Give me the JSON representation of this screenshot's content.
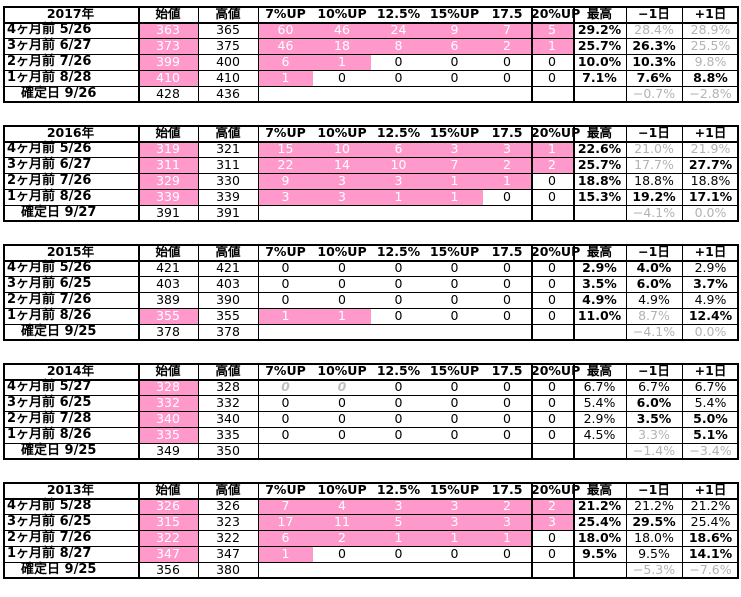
{
  "columns": [
    "始値",
    "高値",
    "7%UP",
    "10%UP",
    "12.5%",
    "15%UP",
    "17.5",
    "20%UP",
    "最高",
    "−1日",
    "+1日"
  ],
  "colors": {
    "highlight": "#ff99cc",
    "muted": "#b3b3b3",
    "border": "#000000"
  },
  "blocks": [
    {
      "year": "2017年",
      "rows": [
        {
          "label": "4ヶ月前  5/26",
          "cells": [
            {
              "v": "363",
              "s": "pk"
            },
            {
              "v": "365"
            },
            {
              "v": "60",
              "s": "pk"
            },
            {
              "v": "46",
              "s": "pk"
            },
            {
              "v": "24",
              "s": "pk"
            },
            {
              "v": "9",
              "s": "pk"
            },
            {
              "v": "7",
              "s": "pk"
            },
            {
              "v": "5",
              "s": "pk"
            },
            {
              "v": "29.2%",
              "s": "b"
            },
            {
              "v": "28.4%",
              "s": "gy"
            },
            {
              "v": "28.9%",
              "s": "gy"
            }
          ]
        },
        {
          "label": "3ヶ月前  6/27",
          "cells": [
            {
              "v": "373",
              "s": "pk"
            },
            {
              "v": "375"
            },
            {
              "v": "46",
              "s": "pk"
            },
            {
              "v": "18",
              "s": "pk"
            },
            {
              "v": "8",
              "s": "pk"
            },
            {
              "v": "6",
              "s": "pk"
            },
            {
              "v": "2",
              "s": "pk"
            },
            {
              "v": "1",
              "s": "pk"
            },
            {
              "v": "25.7%",
              "s": "b"
            },
            {
              "v": "26.3%",
              "s": "b"
            },
            {
              "v": "25.5%",
              "s": "gy"
            }
          ]
        },
        {
          "label": "2ヶ月前  7/26",
          "cells": [
            {
              "v": "399",
              "s": "pk"
            },
            {
              "v": "400"
            },
            {
              "v": "6",
              "s": "pk"
            },
            {
              "v": "1",
              "s": "pk"
            },
            {
              "v": "0"
            },
            {
              "v": "0"
            },
            {
              "v": "0"
            },
            {
              "v": "0"
            },
            {
              "v": "10.0%",
              "s": "b"
            },
            {
              "v": "10.3%",
              "s": "b"
            },
            {
              "v": "9.8%",
              "s": "gy"
            }
          ]
        },
        {
          "label": "1ヶ月前  8/28",
          "cells": [
            {
              "v": "410",
              "s": "pk"
            },
            {
              "v": "410"
            },
            {
              "v": "1",
              "s": "pk"
            },
            {
              "v": "0"
            },
            {
              "v": "0"
            },
            {
              "v": "0"
            },
            {
              "v": "0"
            },
            {
              "v": "0"
            },
            {
              "v": "7.1%",
              "s": "b"
            },
            {
              "v": "7.6%",
              "s": "b"
            },
            {
              "v": "8.8%",
              "s": "b"
            }
          ]
        }
      ],
      "confirm": {
        "label": "確定日  9/26",
        "open": "428",
        "high": "436",
        "m1": "−0.7%",
        "p1": "−2.8%"
      }
    },
    {
      "year": "2016年",
      "rows": [
        {
          "label": "4ヶ月前  5/26",
          "cells": [
            {
              "v": "319",
              "s": "pk"
            },
            {
              "v": "321"
            },
            {
              "v": "15",
              "s": "pk"
            },
            {
              "v": "10",
              "s": "pk"
            },
            {
              "v": "6",
              "s": "pk"
            },
            {
              "v": "3",
              "s": "pk"
            },
            {
              "v": "3",
              "s": "pk"
            },
            {
              "v": "1",
              "s": "pk"
            },
            {
              "v": "22.6%",
              "s": "b"
            },
            {
              "v": "21.0%",
              "s": "gy"
            },
            {
              "v": "21.9%",
              "s": "gy"
            }
          ]
        },
        {
          "label": "3ヶ月前  6/27",
          "cells": [
            {
              "v": "311",
              "s": "pk"
            },
            {
              "v": "311"
            },
            {
              "v": "22",
              "s": "pk"
            },
            {
              "v": "14",
              "s": "pk"
            },
            {
              "v": "10",
              "s": "pk"
            },
            {
              "v": "7",
              "s": "pk"
            },
            {
              "v": "2",
              "s": "pk"
            },
            {
              "v": "2",
              "s": "pk"
            },
            {
              "v": "25.7%",
              "s": "b"
            },
            {
              "v": "17.7%",
              "s": "gy"
            },
            {
              "v": "27.7%",
              "s": "b"
            }
          ]
        },
        {
          "label": "2ヶ月前  7/26",
          "cells": [
            {
              "v": "329",
              "s": "pk"
            },
            {
              "v": "330"
            },
            {
              "v": "9",
              "s": "pk"
            },
            {
              "v": "3",
              "s": "pk"
            },
            {
              "v": "3",
              "s": "pk"
            },
            {
              "v": "1",
              "s": "pk"
            },
            {
              "v": "1",
              "s": "pk"
            },
            {
              "v": "0"
            },
            {
              "v": "18.8%",
              "s": "b"
            },
            {
              "v": "18.8%"
            },
            {
              "v": "18.8%"
            }
          ]
        },
        {
          "label": "1ヶ月前  8/26",
          "cells": [
            {
              "v": "339",
              "s": "pk"
            },
            {
              "v": "339"
            },
            {
              "v": "3",
              "s": "pk"
            },
            {
              "v": "3",
              "s": "pk"
            },
            {
              "v": "1",
              "s": "pk"
            },
            {
              "v": "1",
              "s": "pk"
            },
            {
              "v": "0"
            },
            {
              "v": "0"
            },
            {
              "v": "15.3%",
              "s": "b"
            },
            {
              "v": "19.2%",
              "s": "b"
            },
            {
              "v": "17.1%",
              "s": "b"
            }
          ]
        }
      ],
      "confirm": {
        "label": "確定日  9/27",
        "open": "391",
        "high": "391",
        "m1": "−4.1%",
        "p1": "0.0%"
      }
    },
    {
      "year": "2015年",
      "rows": [
        {
          "label": "4ヶ月前  5/26",
          "cells": [
            {
              "v": "421"
            },
            {
              "v": "421"
            },
            {
              "v": "0"
            },
            {
              "v": "0"
            },
            {
              "v": "0"
            },
            {
              "v": "0"
            },
            {
              "v": "0"
            },
            {
              "v": "0"
            },
            {
              "v": "2.9%",
              "s": "b"
            },
            {
              "v": "4.0%",
              "s": "b"
            },
            {
              "v": "2.9%"
            }
          ]
        },
        {
          "label": "3ヶ月前  6/25",
          "cells": [
            {
              "v": "403"
            },
            {
              "v": "403"
            },
            {
              "v": "0"
            },
            {
              "v": "0"
            },
            {
              "v": "0"
            },
            {
              "v": "0"
            },
            {
              "v": "0"
            },
            {
              "v": "0"
            },
            {
              "v": "3.5%",
              "s": "b"
            },
            {
              "v": "6.0%",
              "s": "b"
            },
            {
              "v": "3.7%",
              "s": "b"
            }
          ]
        },
        {
          "label": "2ヶ月前  7/26",
          "cells": [
            {
              "v": "389"
            },
            {
              "v": "390"
            },
            {
              "v": "0"
            },
            {
              "v": "0"
            },
            {
              "v": "0"
            },
            {
              "v": "0"
            },
            {
              "v": "0"
            },
            {
              "v": "0"
            },
            {
              "v": "4.9%",
              "s": "b"
            },
            {
              "v": "4.9%"
            },
            {
              "v": "4.9%"
            }
          ]
        },
        {
          "label": "1ヶ月前  8/26",
          "cells": [
            {
              "v": "355",
              "s": "pk"
            },
            {
              "v": "355"
            },
            {
              "v": "1",
              "s": "pk"
            },
            {
              "v": "1",
              "s": "pk"
            },
            {
              "v": "0"
            },
            {
              "v": "0"
            },
            {
              "v": "0"
            },
            {
              "v": "0"
            },
            {
              "v": "11.0%",
              "s": "b"
            },
            {
              "v": "8.7%",
              "s": "gy"
            },
            {
              "v": "12.4%",
              "s": "b"
            }
          ]
        }
      ],
      "confirm": {
        "label": "確定日  9/25",
        "open": "378",
        "high": "378",
        "m1": "−4.1%",
        "p1": "0.0%"
      }
    },
    {
      "year": "2014年",
      "rows": [
        {
          "label": "4ヶ月前  5/27",
          "cells": [
            {
              "v": "328",
              "s": "pk"
            },
            {
              "v": "328"
            },
            {
              "v": "0",
              "s": "it"
            },
            {
              "v": "0",
              "s": "it"
            },
            {
              "v": "0"
            },
            {
              "v": "0"
            },
            {
              "v": "0"
            },
            {
              "v": "0"
            },
            {
              "v": "6.7%"
            },
            {
              "v": "6.7%"
            },
            {
              "v": "6.7%"
            }
          ]
        },
        {
          "label": "3ヶ月前  6/25",
          "cells": [
            {
              "v": "332",
              "s": "pk"
            },
            {
              "v": "332"
            },
            {
              "v": "0"
            },
            {
              "v": "0"
            },
            {
              "v": "0"
            },
            {
              "v": "0"
            },
            {
              "v": "0"
            },
            {
              "v": "0"
            },
            {
              "v": "5.4%"
            },
            {
              "v": "6.0%",
              "s": "b"
            },
            {
              "v": "5.4%"
            }
          ]
        },
        {
          "label": "2ヶ月前  7/28",
          "cells": [
            {
              "v": "340",
              "s": "pk"
            },
            {
              "v": "340"
            },
            {
              "v": "0"
            },
            {
              "v": "0"
            },
            {
              "v": "0"
            },
            {
              "v": "0"
            },
            {
              "v": "0"
            },
            {
              "v": "0"
            },
            {
              "v": "2.9%"
            },
            {
              "v": "3.5%",
              "s": "b"
            },
            {
              "v": "5.0%",
              "s": "b"
            }
          ]
        },
        {
          "label": "1ヶ月前  8/26",
          "cells": [
            {
              "v": "335",
              "s": "pk"
            },
            {
              "v": "335"
            },
            {
              "v": "0"
            },
            {
              "v": "0"
            },
            {
              "v": "0"
            },
            {
              "v": "0"
            },
            {
              "v": "0"
            },
            {
              "v": "0"
            },
            {
              "v": "4.5%"
            },
            {
              "v": "3.3%",
              "s": "gy"
            },
            {
              "v": "5.1%",
              "s": "b"
            }
          ]
        }
      ],
      "confirm": {
        "label": "確定日  9/25",
        "open": "349",
        "high": "350",
        "m1": "−1.4%",
        "p1": "−3.4%"
      }
    },
    {
      "year": "2013年",
      "rows": [
        {
          "label": "4ヶ月前  5/28",
          "cells": [
            {
              "v": "326",
              "s": "pk"
            },
            {
              "v": "326"
            },
            {
              "v": "7",
              "s": "pk"
            },
            {
              "v": "4",
              "s": "pk"
            },
            {
              "v": "3",
              "s": "pk"
            },
            {
              "v": "3",
              "s": "pk"
            },
            {
              "v": "2",
              "s": "pk"
            },
            {
              "v": "2",
              "s": "pk"
            },
            {
              "v": "21.2%",
              "s": "b"
            },
            {
              "v": "21.2%"
            },
            {
              "v": "21.2%"
            }
          ]
        },
        {
          "label": "3ヶ月前  6/25",
          "cells": [
            {
              "v": "315",
              "s": "pk"
            },
            {
              "v": "323"
            },
            {
              "v": "17",
              "s": "pk"
            },
            {
              "v": "11",
              "s": "pk"
            },
            {
              "v": "5",
              "s": "pk"
            },
            {
              "v": "3",
              "s": "pk"
            },
            {
              "v": "3",
              "s": "pk"
            },
            {
              "v": "3",
              "s": "pk"
            },
            {
              "v": "25.4%",
              "s": "b"
            },
            {
              "v": "29.5%",
              "s": "b"
            },
            {
              "v": "25.4%"
            }
          ]
        },
        {
          "label": "2ヶ月前  7/26",
          "cells": [
            {
              "v": "322",
              "s": "pk"
            },
            {
              "v": "322"
            },
            {
              "v": "6",
              "s": "pk"
            },
            {
              "v": "2",
              "s": "pk"
            },
            {
              "v": "1",
              "s": "pk"
            },
            {
              "v": "1",
              "s": "pk"
            },
            {
              "v": "1",
              "s": "pk"
            },
            {
              "v": "0"
            },
            {
              "v": "18.0%",
              "s": "b"
            },
            {
              "v": "18.0%"
            },
            {
              "v": "18.6%",
              "s": "b"
            }
          ]
        },
        {
          "label": "1ヶ月前  8/27",
          "cells": [
            {
              "v": "347",
              "s": "pk"
            },
            {
              "v": "347"
            },
            {
              "v": "1",
              "s": "pk"
            },
            {
              "v": "0"
            },
            {
              "v": "0"
            },
            {
              "v": "0"
            },
            {
              "v": "0"
            },
            {
              "v": "0"
            },
            {
              "v": "9.5%",
              "s": "b"
            },
            {
              "v": "9.5%"
            },
            {
              "v": "14.1%",
              "s": "b"
            }
          ]
        }
      ],
      "confirm": {
        "label": "確定日  9/25",
        "open": "356",
        "high": "380",
        "m1": "−5.3%",
        "p1": "−7.6%"
      }
    }
  ]
}
